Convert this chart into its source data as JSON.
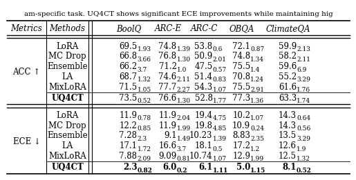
{
  "title_text": "am-specific task. UQ4CT shows significant ECE improvements while maintaining hig",
  "header": [
    "Metrics",
    "Methods",
    "BoolQ",
    "ARC-E",
    "ARC-C",
    "OBQA",
    "ClimateQA"
  ],
  "acc_rows": [
    [
      "LoRA",
      "69.5_{1.93}",
      "74.8_{1.39}",
      "53.8_{0.6}",
      "72.1_{0.87}",
      "59.9_{2.13}"
    ],
    [
      "MC Drop",
      "66.8_{3.66}",
      "76.8_{1.30}",
      "50.9_{2.01}",
      "74.8_{1.34}",
      "58.2_{2.11}"
    ],
    [
      "Ensemble",
      "66.2_{3.7}",
      "71.2_{1.0}",
      "47.5_{0.57}",
      "75.5_{1.4}",
      "59.6_{6.9}"
    ],
    [
      "LA",
      "68.7_{1.32}",
      "74.6_{2.11}",
      "51.4_{0.83}",
      "70.8_{1.24}",
      "55.2_{3.29}"
    ],
    [
      "MixLoRA",
      "71.5_{1.05}",
      "77.7_{2.27}",
      "54.3_{1.07}",
      "75.5_{2.91}",
      "61.6_{1.76}"
    ],
    [
      "UQ4CT",
      "73.5_{0.52}",
      "76.6_{1.30}",
      "52.8_{1.77}",
      "77.3_{1.36}",
      "63.3_{1.74}"
    ]
  ],
  "ece_rows": [
    [
      "LoRA",
      "11.9_{0.78}",
      "11.9_{2.04}",
      "19.4_{4.75}",
      "10.2_{1.07}",
      "14.3_{0.64}"
    ],
    [
      "MC Drop",
      "12.2_{0.85}",
      "11.9_{1.99}",
      "19.8_{4.85}",
      "10.9_{0.24}",
      "14.3_{0.56}"
    ],
    [
      "Ensemble",
      "7.28_{2.3}",
      "9.1_{1.49}",
      "10.23_{1.39}",
      "8.83_{2.35}",
      "13.5_{3.29}"
    ],
    [
      "LA",
      "17.1_{1.72}",
      "16.6_{3.7}",
      "18.1_{0.5}",
      "17.2_{1.2}",
      "12.6_{1.9}"
    ],
    [
      "MixLoRA",
      "7.88_{2.09}",
      "9.09_{0.81}",
      "10.74_{1.07}",
      "12.9_{1.99}",
      "12.5_{1.32}"
    ],
    [
      "UQ4CT",
      "2.3_{0.82}",
      "6.0_{0.2}",
      "6.1_{1.11}",
      "5.0_{1.15}",
      "8.1_{0.52}"
    ]
  ],
  "acc_label": "ACC ↑",
  "ece_label": "ECE ↓",
  "bg_color": "#ffffff",
  "font_size": 8.5,
  "sub_font_size": 6.5,
  "title_font_size": 7.5
}
